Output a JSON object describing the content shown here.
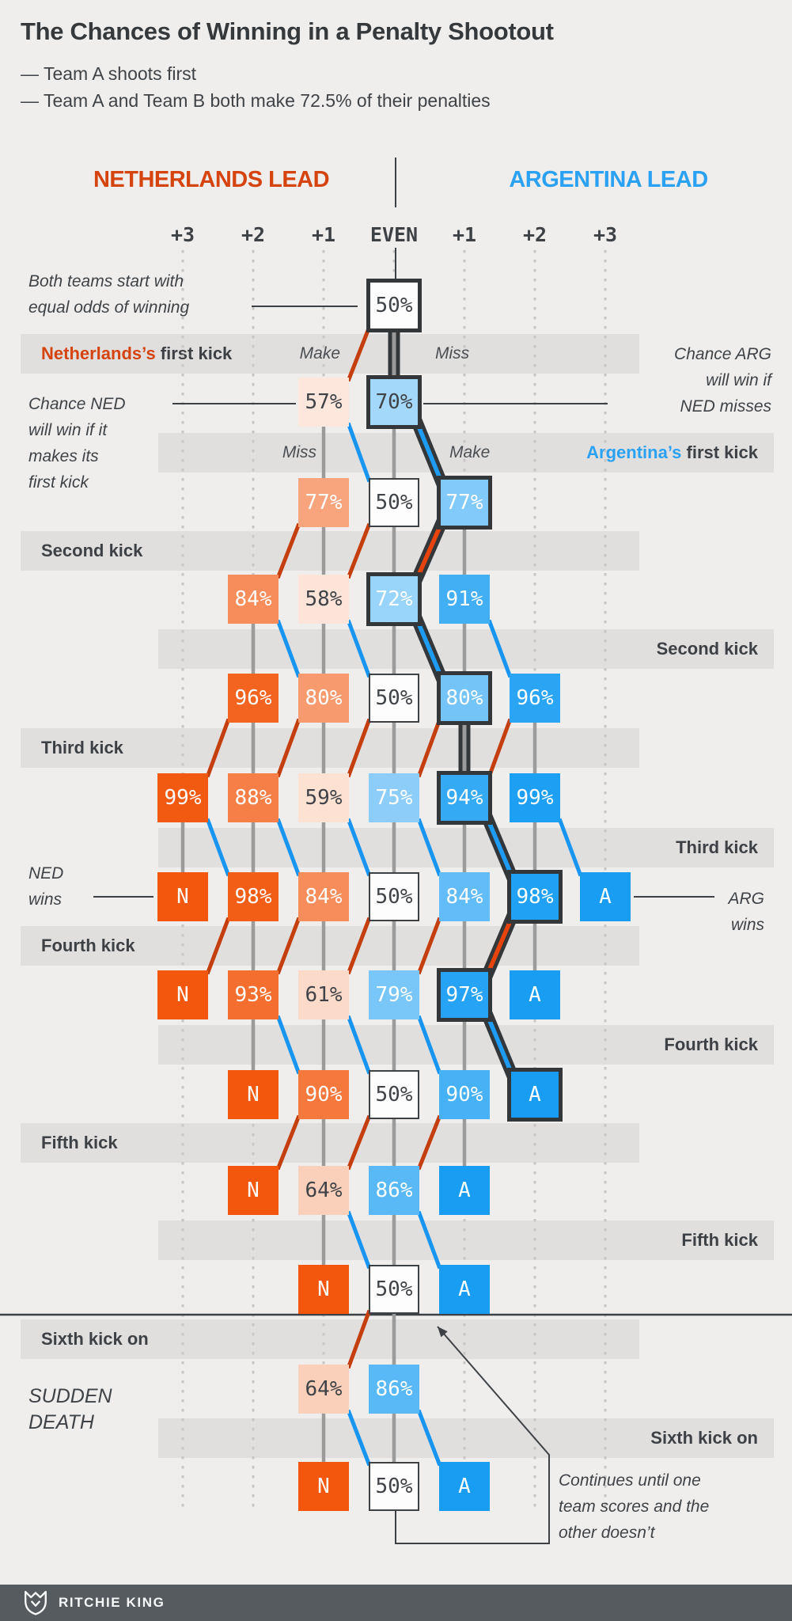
{
  "title": "The Chances of Winning in a Penalty Shootout",
  "subtitle_lines": [
    "— Team A shoots first",
    "— Team A and Team B both make 72.5% of their penalties"
  ],
  "headers": {
    "left": {
      "label": "NETHERLANDS LEAD",
      "color": "#d5430e"
    },
    "right": {
      "label": "ARGENTINA LEAD",
      "color": "#2aa1f2"
    }
  },
  "axis_labels": [
    "+3",
    "+2",
    "+1",
    "EVEN",
    "+1",
    "+2",
    "+3"
  ],
  "colors": {
    "background": "#efeeed",
    "band": "#e0dfde",
    "ink": "#3d4145",
    "ned_base": "#f2570d",
    "arg_base": "#189df3",
    "ned_line": "#c43e0e",
    "arg_line": "#1795f0",
    "ned_line_hl": "#e8430a",
    "arg_line_hl": "#1e9cf3",
    "miss_line": "#9b9b9b",
    "guide_dot": "#c7c6c5",
    "path_casing": "#33373a",
    "box_white": "#fdfdfd",
    "box_border": "#3f4245",
    "footer_bg": "#565b5f",
    "footer_text": "#f7f8f8"
  },
  "tree": {
    "kick_sequence": [
      "NED",
      "ARG",
      "NED",
      "ARG",
      "NED",
      "ARG",
      "NED",
      "ARG",
      "NED",
      "ARG",
      "NED",
      "ARG"
    ],
    "rows": [
      {
        "boxes": [
          {
            "col": 0,
            "label": "50%",
            "value": 50,
            "team": "even",
            "hl": true
          }
        ]
      },
      {
        "boxes": [
          {
            "col": -1,
            "label": "57%",
            "value": 57,
            "team": "ned"
          },
          {
            "col": 0,
            "label": "70%",
            "value": 70,
            "team": "arg",
            "hl": true
          }
        ]
      },
      {
        "boxes": [
          {
            "col": -1,
            "label": "77%",
            "value": 77,
            "team": "ned"
          },
          {
            "col": 0,
            "label": "50%",
            "value": 50,
            "team": "even"
          },
          {
            "col": 1,
            "label": "77%",
            "value": 77,
            "team": "arg",
            "hl": true
          }
        ]
      },
      {
        "boxes": [
          {
            "col": -2,
            "label": "84%",
            "value": 84,
            "team": "ned"
          },
          {
            "col": -1,
            "label": "58%",
            "value": 58,
            "team": "ned"
          },
          {
            "col": 0,
            "label": "72%",
            "value": 72,
            "team": "arg",
            "hl": true
          },
          {
            "col": 1,
            "label": "91%",
            "value": 91,
            "team": "arg"
          }
        ]
      },
      {
        "boxes": [
          {
            "col": -2,
            "label": "96%",
            "value": 96,
            "team": "ned"
          },
          {
            "col": -1,
            "label": "80%",
            "value": 80,
            "team": "ned"
          },
          {
            "col": 0,
            "label": "50%",
            "value": 50,
            "team": "even"
          },
          {
            "col": 1,
            "label": "80%",
            "value": 80,
            "team": "arg",
            "hl": true
          },
          {
            "col": 2,
            "label": "96%",
            "value": 96,
            "team": "arg"
          }
        ]
      },
      {
        "boxes": [
          {
            "col": -3,
            "label": "99%",
            "value": 99,
            "team": "ned"
          },
          {
            "col": -2,
            "label": "88%",
            "value": 88,
            "team": "ned"
          },
          {
            "col": -1,
            "label": "59%",
            "value": 59,
            "team": "ned"
          },
          {
            "col": 0,
            "label": "75%",
            "value": 75,
            "team": "arg"
          },
          {
            "col": 1,
            "label": "94%",
            "value": 94,
            "team": "arg",
            "hl": true
          },
          {
            "col": 2,
            "label": "99%",
            "value": 99,
            "team": "arg"
          }
        ]
      },
      {
        "boxes": [
          {
            "col": -3,
            "label": "N",
            "team": "ned",
            "term": true
          },
          {
            "col": -2,
            "label": "98%",
            "value": 98,
            "team": "ned"
          },
          {
            "col": -1,
            "label": "84%",
            "value": 84,
            "team": "ned"
          },
          {
            "col": 0,
            "label": "50%",
            "value": 50,
            "team": "even"
          },
          {
            "col": 1,
            "label": "84%",
            "value": 84,
            "team": "arg"
          },
          {
            "col": 2,
            "label": "98%",
            "value": 98,
            "team": "arg",
            "hl": true
          },
          {
            "col": 3,
            "label": "A",
            "team": "arg",
            "term": true
          }
        ]
      },
      {
        "boxes": [
          {
            "col": -3,
            "label": "N",
            "team": "ned",
            "term": true
          },
          {
            "col": -2,
            "label": "93%",
            "value": 93,
            "team": "ned"
          },
          {
            "col": -1,
            "label": "61%",
            "value": 61,
            "team": "ned"
          },
          {
            "col": 0,
            "label": "79%",
            "value": 79,
            "team": "arg"
          },
          {
            "col": 1,
            "label": "97%",
            "value": 97,
            "team": "arg",
            "hl": true
          },
          {
            "col": 2,
            "label": "A",
            "team": "arg",
            "term": true
          }
        ]
      },
      {
        "boxes": [
          {
            "col": -2,
            "label": "N",
            "team": "ned",
            "term": true
          },
          {
            "col": -1,
            "label": "90%",
            "value": 90,
            "team": "ned"
          },
          {
            "col": 0,
            "label": "50%",
            "value": 50,
            "team": "even"
          },
          {
            "col": 1,
            "label": "90%",
            "value": 90,
            "team": "arg"
          },
          {
            "col": 2,
            "label": "A",
            "team": "arg",
            "term": true,
            "hl": true
          }
        ]
      },
      {
        "boxes": [
          {
            "col": -2,
            "label": "N",
            "team": "ned",
            "term": true
          },
          {
            "col": -1,
            "label": "64%",
            "value": 64,
            "team": "ned"
          },
          {
            "col": 0,
            "label": "86%",
            "value": 86,
            "team": "arg"
          },
          {
            "col": 1,
            "label": "A",
            "team": "arg",
            "term": true
          }
        ]
      },
      {
        "boxes": [
          {
            "col": -1,
            "label": "N",
            "team": "ned",
            "term": true
          },
          {
            "col": 0,
            "label": "50%",
            "value": 50,
            "team": "even"
          },
          {
            "col": 1,
            "label": "A",
            "team": "arg",
            "term": true
          }
        ]
      },
      {
        "boxes": [
          {
            "col": -1,
            "label": "64%",
            "value": 64,
            "team": "ned"
          },
          {
            "col": 0,
            "label": "86%",
            "value": 86,
            "team": "arg"
          }
        ]
      },
      {
        "boxes": [
          {
            "col": -1,
            "label": "N",
            "team": "ned",
            "term": true
          },
          {
            "col": 0,
            "label": "50%",
            "value": 50,
            "team": "even"
          },
          {
            "col": 1,
            "label": "A",
            "team": "arg",
            "term": true
          }
        ]
      }
    ],
    "highlight_path": [
      [
        0,
        0
      ],
      [
        1,
        0
      ],
      [
        2,
        1
      ],
      [
        3,
        0
      ],
      [
        4,
        1
      ],
      [
        5,
        1
      ],
      [
        6,
        2
      ],
      [
        7,
        1
      ],
      [
        8,
        2
      ]
    ]
  },
  "bands": [
    {
      "side": "left",
      "label_segments": [
        {
          "text": "Netherlands’s ",
          "color": "#d5430e"
        },
        {
          "text": "first kick"
        }
      ],
      "make_label": "Make",
      "miss_label": "Miss"
    },
    {
      "side": "right",
      "label_segments": [
        {
          "text": "Argentina’s ",
          "color": "#2aa1f2"
        },
        {
          "text": "first kick"
        }
      ],
      "make_label": "Make",
      "miss_label": "Miss"
    },
    {
      "side": "left",
      "label_segments": [
        {
          "text": "Second kick"
        }
      ]
    },
    {
      "side": "right",
      "label_segments": [
        {
          "text": "Second kick"
        }
      ]
    },
    {
      "side": "left",
      "label_segments": [
        {
          "text": "Third kick"
        }
      ]
    },
    {
      "side": "right",
      "label_segments": [
        {
          "text": "Third kick"
        }
      ]
    },
    {
      "side": "left",
      "label_segments": [
        {
          "text": "Fourth kick"
        }
      ]
    },
    {
      "side": "right",
      "label_segments": [
        {
          "text": "Fourth kick"
        }
      ]
    },
    {
      "side": "left",
      "label_segments": [
        {
          "text": "Fifth kick"
        }
      ]
    },
    {
      "side": "right",
      "label_segments": [
        {
          "text": "Fifth kick"
        }
      ]
    },
    {
      "side": "left",
      "label_segments": [
        {
          "text": "Sixth kick on"
        }
      ]
    },
    {
      "side": "right",
      "label_segments": [
        {
          "text": "Sixth kick on"
        }
      ]
    }
  ],
  "annotations": {
    "start": {
      "lines": [
        "Both teams start with",
        "equal odds of winning"
      ]
    },
    "ned_first": {
      "lines": [
        "Chance NED",
        "will win if it",
        "makes its",
        "first kick"
      ]
    },
    "arg_first": {
      "lines": [
        "Chance ARG",
        "will win if",
        "NED misses"
      ]
    },
    "ned_wins": {
      "lines": [
        "NED",
        "wins"
      ]
    },
    "arg_wins": {
      "lines": [
        "ARG",
        "wins"
      ]
    },
    "sudden_death": {
      "lines": [
        "SUDDEN",
        "DEATH"
      ]
    },
    "continues": {
      "lines": [
        "Continues until one",
        "team scores and the",
        "other doesn’t"
      ]
    }
  },
  "footer": {
    "credit": "RITCHIE KING",
    "logo": "shield-fox-icon"
  }
}
